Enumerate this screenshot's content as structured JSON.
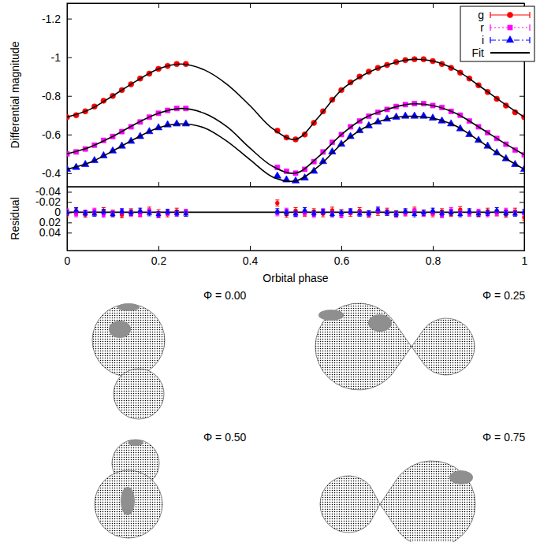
{
  "chart_data": [
    {
      "type": "scatter",
      "y_label": "Differential magnitude",
      "xlim": [
        0,
        1
      ],
      "xticks": [
        0,
        0.2,
        0.4,
        0.6,
        0.8,
        1
      ],
      "ylim": [
        -0.33,
        -1.28
      ],
      "yticks": [
        -1.2,
        -1,
        -0.8,
        -0.6,
        -0.4
      ],
      "tick_labels": "y",
      "legend": "top-right",
      "x": [
        0,
        0.02,
        0.04,
        0.06,
        0.08,
        0.1,
        0.12,
        0.14,
        0.16,
        0.18,
        0.2,
        0.22,
        0.24,
        0.26,
        0.46,
        0.48,
        0.5,
        0.52,
        0.54,
        0.56,
        0.58,
        0.6,
        0.62,
        0.64,
        0.66,
        0.68,
        0.7,
        0.72,
        0.74,
        0.76,
        0.78,
        0.8,
        0.82,
        0.84,
        0.86,
        0.88,
        0.9,
        0.92,
        0.94,
        0.96,
        0.98,
        1
      ],
      "series": [
        {
          "name": "g",
          "color": "#ff0000",
          "marker": "circle",
          "line_style": "solid",
          "values": [
            -0.69,
            -0.7,
            -0.72,
            -0.745,
            -0.775,
            -0.8,
            -0.83,
            -0.86,
            -0.89,
            -0.915,
            -0.94,
            -0.955,
            -0.965,
            -0.965,
            -0.62,
            -0.585,
            -0.575,
            -0.6,
            -0.66,
            -0.72,
            -0.78,
            -0.83,
            -0.87,
            -0.9,
            -0.925,
            -0.945,
            -0.96,
            -0.975,
            -0.985,
            -0.99,
            -0.99,
            -0.98,
            -0.965,
            -0.945,
            -0.92,
            -0.89,
            -0.855,
            -0.82,
            -0.785,
            -0.75,
            -0.715,
            -0.69
          ]
        },
        {
          "name": "r",
          "color": "#ff00ff",
          "marker": "square",
          "line_style": "dotted",
          "values": [
            -0.5,
            -0.51,
            -0.525,
            -0.545,
            -0.57,
            -0.59,
            -0.615,
            -0.64,
            -0.665,
            -0.69,
            -0.71,
            -0.725,
            -0.735,
            -0.735,
            -0.43,
            -0.41,
            -0.4,
            -0.42,
            -0.46,
            -0.51,
            -0.56,
            -0.6,
            -0.64,
            -0.67,
            -0.695,
            -0.715,
            -0.73,
            -0.745,
            -0.755,
            -0.76,
            -0.76,
            -0.75,
            -0.74,
            -0.72,
            -0.7,
            -0.67,
            -0.64,
            -0.61,
            -0.58,
            -0.55,
            -0.52,
            -0.495
          ]
        },
        {
          "name": "i",
          "color": "#0000ff",
          "marker": "triangle",
          "line_style": "dash-dot",
          "values": [
            -0.42,
            -0.43,
            -0.445,
            -0.465,
            -0.49,
            -0.515,
            -0.54,
            -0.565,
            -0.59,
            -0.615,
            -0.635,
            -0.65,
            -0.655,
            -0.655,
            -0.385,
            -0.365,
            -0.36,
            -0.375,
            -0.41,
            -0.46,
            -0.51,
            -0.55,
            -0.59,
            -0.62,
            -0.645,
            -0.665,
            -0.68,
            -0.69,
            -0.695,
            -0.695,
            -0.695,
            -0.685,
            -0.67,
            -0.655,
            -0.63,
            -0.6,
            -0.57,
            -0.54,
            -0.505,
            -0.475,
            -0.445,
            -0.42
          ]
        }
      ],
      "fit": {
        "name": "Fit",
        "color": "#000000",
        "type": "line",
        "x": [
          0,
          0.05,
          0.1,
          0.15,
          0.2,
          0.25,
          0.3,
          0.35,
          0.4,
          0.45,
          0.5,
          0.55,
          0.6,
          0.65,
          0.7,
          0.75,
          0.8,
          0.85,
          0.9,
          0.95,
          1
        ],
        "series": [
          [
            -0.69,
            -0.73,
            -0.8,
            -0.875,
            -0.94,
            -0.965,
            -0.935,
            -0.86,
            -0.75,
            -0.63,
            -0.575,
            -0.69,
            -0.83,
            -0.91,
            -0.96,
            -0.988,
            -0.98,
            -0.935,
            -0.855,
            -0.77,
            -0.69
          ],
          [
            -0.5,
            -0.535,
            -0.59,
            -0.655,
            -0.71,
            -0.735,
            -0.71,
            -0.64,
            -0.53,
            -0.435,
            -0.4,
            -0.485,
            -0.6,
            -0.685,
            -0.73,
            -0.758,
            -0.75,
            -0.71,
            -0.64,
            -0.565,
            -0.495
          ],
          [
            -0.42,
            -0.455,
            -0.515,
            -0.58,
            -0.635,
            -0.655,
            -0.635,
            -0.565,
            -0.47,
            -0.38,
            -0.36,
            -0.435,
            -0.55,
            -0.635,
            -0.68,
            -0.695,
            -0.685,
            -0.645,
            -0.57,
            -0.49,
            -0.42
          ]
        ]
      }
    },
    {
      "type": "scatter",
      "x_label": "Orbital phase",
      "y_label": "Residual",
      "xlim": [
        0,
        1
      ],
      "xticks": [
        0,
        0.2,
        0.4,
        0.6,
        0.8,
        1
      ],
      "ylim": [
        0.075,
        -0.05
      ],
      "yticks": [
        -0.04,
        -0.02,
        0,
        0.02,
        0.04
      ],
      "x": [
        0,
        0.02,
        0.04,
        0.06,
        0.08,
        0.1,
        0.12,
        0.14,
        0.16,
        0.18,
        0.2,
        0.22,
        0.24,
        0.26,
        0.46,
        0.48,
        0.5,
        0.52,
        0.54,
        0.56,
        0.58,
        0.6,
        0.62,
        0.64,
        0.66,
        0.68,
        0.7,
        0.72,
        0.74,
        0.76,
        0.78,
        0.8,
        0.82,
        0.84,
        0.86,
        0.88,
        0.9,
        0.92,
        0.94,
        0.96,
        0.98,
        1
      ],
      "series": [
        {
          "color": "#ff0000",
          "marker": "circle",
          "error": 0.006,
          "values": [
            0.003,
            -0.002,
            0.004,
            0.001,
            -0.003,
            0.002,
            0.005,
            -0.001,
            0.002,
            -0.004,
            0.001,
            0.003,
            -0.002,
            0.002,
            -0.018,
            0.004,
            -0.003,
            0.002,
            -0.001,
            0.003,
            -0.004,
            0.001,
            0.002,
            -0.003,
            0.004,
            0,
            -0.002,
            0.003,
            0.001,
            -0.004,
            0.002,
            0.003,
            -0.001,
            0.002,
            -0.005,
            0.001,
            0.003,
            -0.002,
            0.001,
            0.004,
            -0.002,
            0.01
          ]
        },
        {
          "color": "#ff00ff",
          "marker": "square",
          "error": 0.005,
          "values": [
            -0.002,
            0.004,
            0.001,
            -0.003,
            0.005,
            0.002,
            -0.001,
            0.003,
            0.004,
            -0.002,
            0.006,
            0.001,
            0.003,
            -0.001,
            0.002,
            -0.003,
            0.004,
            0.001,
            0.005,
            -0.002,
            0.003,
            0.006,
            -0.001,
            0.002,
            0.004,
            -0.003,
            0.001,
            0.005,
            0.002,
            -0.002,
            0.003,
            0.001,
            0.006,
            -0.004,
            0.002,
            0.003,
            -0.001,
            0.004,
            0.002,
            -0.003,
            0.001,
            0.002
          ]
        },
        {
          "color": "#0000ff",
          "marker": "triangle",
          "error": 0.005,
          "values": [
            0.001,
            -0.004,
            0.002,
            0.003,
            -0.001,
            0.004,
            -0.002,
            0.001,
            -0.003,
            0.002,
            0.004,
            -0.001,
            0.002,
            0.003,
            -0.002,
            0.001,
            0.003,
            -0.004,
            0.002,
            -0.001,
            0.004,
            0.001,
            -0.002,
            0.003,
            0.002,
            -0.005,
            0.001,
            0.003,
            -0.002,
            0.004,
            0.001,
            -0.003,
            0.002,
            0.001,
            0.004,
            -0.002,
            0.003,
            0.001,
            -0.004,
            0.002,
            0.003,
            -0.001
          ]
        }
      ],
      "fit": {
        "color": "#000000",
        "type": "line",
        "x": [
          0,
          1
        ],
        "values": [
          0,
          0
        ]
      }
    }
  ],
  "diagram": {
    "labels": [
      "Φ = 0.00",
      "Φ = 0.25",
      "Φ = 0.50",
      "Φ = 0.75"
    ]
  }
}
